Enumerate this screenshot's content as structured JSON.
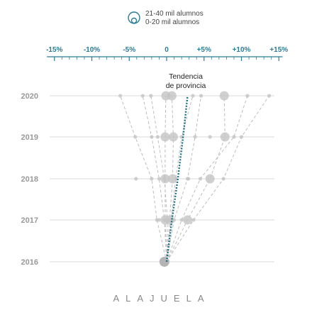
{
  "legend": {
    "large_label": "21-40 mil alumnos",
    "small_label": "0-20 mil alumnos"
  },
  "annotation": "Tendencia de provincia",
  "annotation_lines": [
    "Tendencia",
    "de provincia"
  ],
  "region_label": "ALAJUELA",
  "chart_data": {
    "type": "scatter",
    "title": "",
    "xlabel": "",
    "ylabel": "",
    "x_unit": "% change vs 2016",
    "x_ticks": [
      "-15%",
      "-10%",
      "-5%",
      "0",
      "+5%",
      "+10%",
      "+15%"
    ],
    "x_tick_values": [
      -15,
      -10,
      -5,
      0,
      5,
      10,
      15
    ],
    "xlim": [
      -16,
      15.5
    ],
    "years": [
      "2016",
      "2017",
      "2018",
      "2019",
      "2020"
    ],
    "grid": true,
    "legend_position": "top-center",
    "colors": {
      "point": "#c4c4c4",
      "axis": "#2a7d96",
      "trend": "#1c6f86",
      "line": "#bdbdbd"
    },
    "series": [
      {
        "values": [
          0,
          -1.3,
          -2.0,
          -4.2,
          -6.2
        ],
        "size": "small"
      },
      {
        "values": [
          0,
          -0.3,
          -1.0,
          -2.0,
          -3.2
        ],
        "size": "small"
      },
      {
        "values": [
          0,
          0.1,
          -0.3,
          -1.2,
          -2.1
        ],
        "size": "small"
      },
      {
        "values": [
          0,
          -0.2,
          -0.2,
          -0.2,
          -0.1
        ],
        "size": "large"
      },
      {
        "values": [
          0,
          0.4,
          0.8,
          0.9,
          0.7
        ],
        "size": "large"
      },
      {
        "values": [
          0,
          0.6,
          1.2,
          2.0,
          3.5
        ],
        "size": "small"
      },
      {
        "values": [
          0,
          1.0,
          2.8,
          3.8,
          4.6
        ],
        "size": "small"
      },
      {
        "values": [
          0,
          2.8,
          5.8,
          7.8,
          7.7
        ],
        "size": "large"
      },
      {
        "values": [
          0,
          2.0,
          4.5,
          9.0,
          10.8
        ],
        "size": "small"
      },
      {
        "values": [
          0,
          3.6,
          7.6,
          10.0,
          13.7
        ],
        "size": "small"
      }
    ],
    "extra_points": [
      {
        "year": "2018",
        "value": -4.1,
        "size": "small"
      },
      {
        "year": "2019",
        "value": 5.8,
        "size": "small"
      },
      {
        "year": "2018",
        "value": 2.9,
        "size": "small"
      },
      {
        "year": "2017",
        "value": -1.0,
        "size": "small"
      }
    ],
    "trend": {
      "name": "Tendencia de provincia",
      "values": [
        0,
        0.7,
        1.5,
        2.2,
        2.8
      ]
    }
  }
}
